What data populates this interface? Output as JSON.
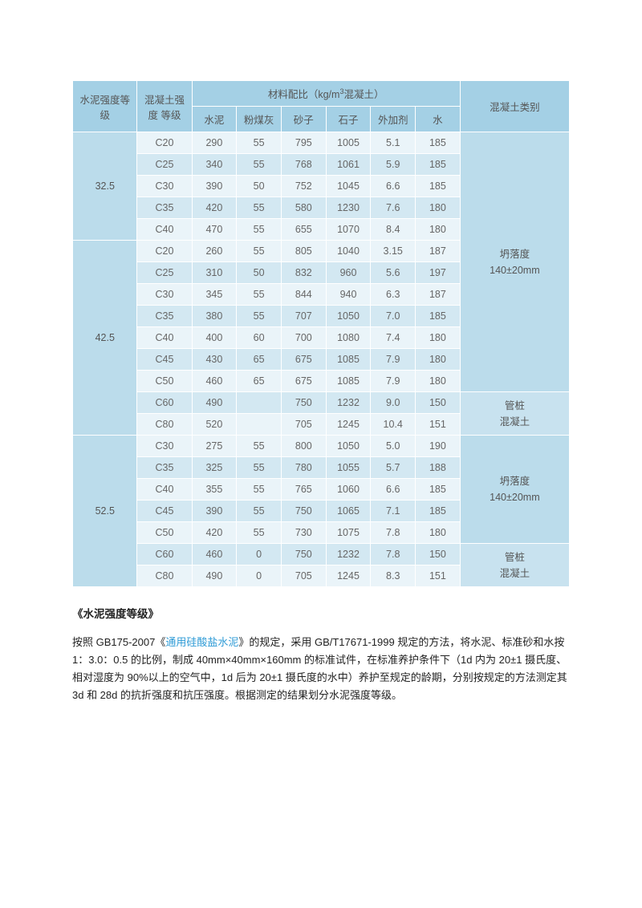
{
  "table": {
    "header_row1": {
      "col_cement_grade": "水泥强度等级",
      "col_concrete_grade": "混凝土强度\n等级",
      "col_mix_label": "材料配比（kg/m",
      "col_mix_unit_sup": "3",
      "col_mix_label_after": "混凝土）",
      "col_type": "混凝土类别"
    },
    "header_row2": {
      "c_cement": "水泥",
      "c_flyash": "粉煤灰",
      "c_sand": "砂子",
      "c_stone": "石子",
      "c_admix": "外加剂",
      "c_water": "水"
    },
    "groups": [
      {
        "cement_grade": "32.5",
        "rows": [
          {
            "grade": "C20",
            "cement": "290",
            "flyash": "55",
            "sand": "795",
            "stone": "1005",
            "admix": "5.1",
            "water": "185"
          },
          {
            "grade": "C25",
            "cement": "340",
            "flyash": "55",
            "sand": "768",
            "stone": "1061",
            "admix": "5.9",
            "water": "185"
          },
          {
            "grade": "C30",
            "cement": "390",
            "flyash": "50",
            "sand": "752",
            "stone": "1045",
            "admix": "6.6",
            "water": "185"
          },
          {
            "grade": "C35",
            "cement": "420",
            "flyash": "55",
            "sand": "580",
            "stone": "1230",
            "admix": "7.6",
            "water": "180"
          },
          {
            "grade": "C40",
            "cement": "470",
            "flyash": "55",
            "sand": "655",
            "stone": "1070",
            "admix": "8.4",
            "water": "180"
          }
        ],
        "type_blocks": []
      },
      {
        "cement_grade": "42.5",
        "rows": [
          {
            "grade": "C20",
            "cement": "260",
            "flyash": "55",
            "sand": "805",
            "stone": "1040",
            "admix": "3.15",
            "water": "187"
          },
          {
            "grade": "C25",
            "cement": "310",
            "flyash": "50",
            "sand": "832",
            "stone": "960",
            "admix": "5.6",
            "water": "197"
          },
          {
            "grade": "C30",
            "cement": "345",
            "flyash": "55",
            "sand": "844",
            "stone": "940",
            "admix": "6.3",
            "water": "187"
          },
          {
            "grade": "C35",
            "cement": "380",
            "flyash": "55",
            "sand": "707",
            "stone": "1050",
            "admix": "7.0",
            "water": "185"
          },
          {
            "grade": "C40",
            "cement": "400",
            "flyash": "60",
            "sand": "700",
            "stone": "1080",
            "admix": "7.4",
            "water": "180"
          },
          {
            "grade": "C45",
            "cement": "430",
            "flyash": "65",
            "sand": "675",
            "stone": "1085",
            "admix": "7.9",
            "water": "180"
          },
          {
            "grade": "C50",
            "cement": "460",
            "flyash": "65",
            "sand": "675",
            "stone": "1085",
            "admix": "7.9",
            "water": "180"
          },
          {
            "grade": "C60",
            "cement": "490",
            "flyash": "",
            "sand": "750",
            "stone": "1232",
            "admix": "9.0",
            "water": "150"
          },
          {
            "grade": "C80",
            "cement": "520",
            "flyash": "",
            "sand": "705",
            "stone": "1245",
            "admix": "10.4",
            "water": "151"
          }
        ]
      },
      {
        "cement_grade": "52.5",
        "rows": [
          {
            "grade": "C30",
            "cement": "275",
            "flyash": "55",
            "sand": "800",
            "stone": "1050",
            "admix": "5.0",
            "water": "190"
          },
          {
            "grade": "C35",
            "cement": "325",
            "flyash": "55",
            "sand": "780",
            "stone": "1055",
            "admix": "5.7",
            "water": "188"
          },
          {
            "grade": "C40",
            "cement": "355",
            "flyash": "55",
            "sand": "765",
            "stone": "1060",
            "admix": "6.6",
            "water": "185"
          },
          {
            "grade": "C45",
            "cement": "390",
            "flyash": "55",
            "sand": "750",
            "stone": "1065",
            "admix": "7.1",
            "water": "185"
          },
          {
            "grade": "C50",
            "cement": "420",
            "flyash": "55",
            "sand": "730",
            "stone": "1075",
            "admix": "7.8",
            "water": "180"
          },
          {
            "grade": "C60",
            "cement": "460",
            "flyash": "0",
            "sand": "750",
            "stone": "1232",
            "admix": "7.8",
            "water": "150"
          },
          {
            "grade": "C80",
            "cement": "490",
            "flyash": "0",
            "sand": "705",
            "stone": "1245",
            "admix": "8.3",
            "water": "151"
          }
        ]
      }
    ],
    "type_labels": {
      "slump_line1": "坍落度",
      "slump_line2": "140±20mm",
      "pile_line1": "管桩",
      "pile_line2": "混凝土"
    }
  },
  "section_title": "《水泥强度等级》",
  "paragraph": {
    "p1a": "按照 GB175-2007《",
    "p1_link": "通用硅酸盐水泥",
    "p1b": "》的规定，采用 GB/T17671-1999 规定的方法，将水泥、标准砂和水按 1：3.0：0.5 的比例，制成 40mm×40mm×160mm 的标准试件，在标准养护条件下（1d 内为 20±1 摄氏度、相对湿度为 90%以上的空气中，1d 后为 20±1 摄氏度的水中）养护至规定的龄期，分别按规定的方法测定其 3d 和 28d 的抗折强度和抗压强度。根据测定的结果划分水泥强度等级。"
  },
  "style": {
    "header_bg": "#a4d0e5",
    "group_bg": "#bbdceb",
    "row_dark": "#eaf4f9",
    "row_light": "#d3e8f2",
    "text_color": "#666666",
    "link_color": "#2e9bd6",
    "font_size_table": 12.5,
    "font_size_body": 13
  }
}
